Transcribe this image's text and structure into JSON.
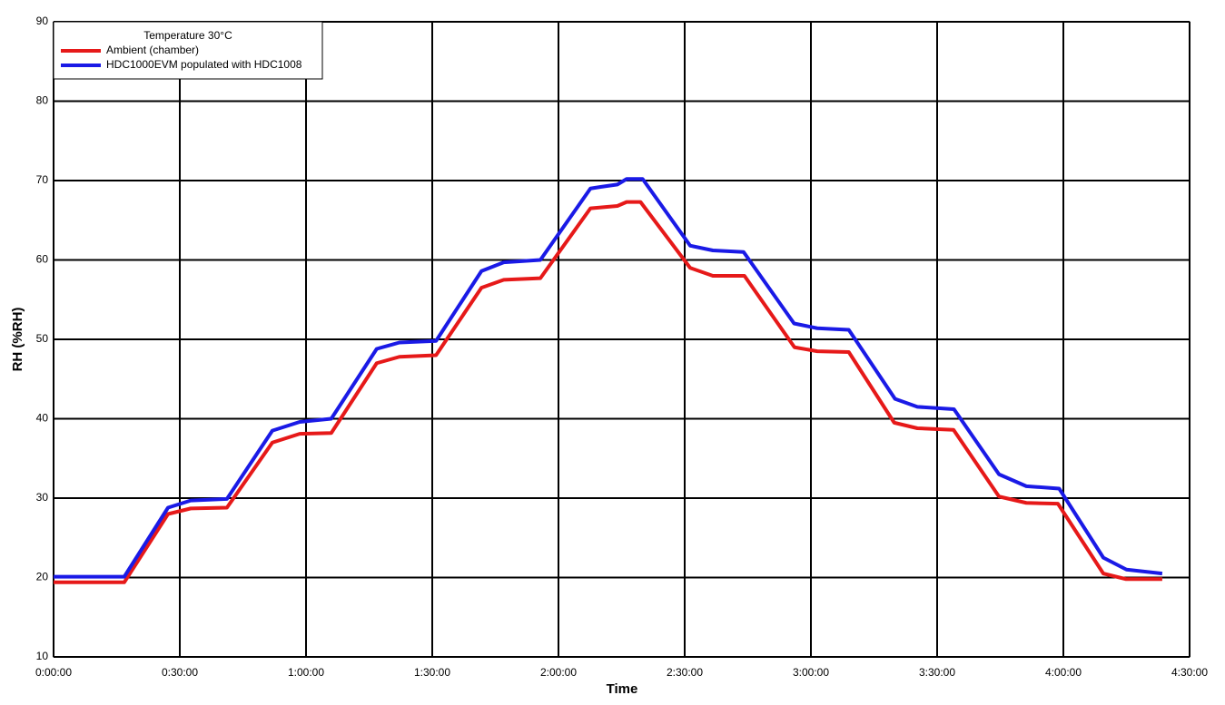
{
  "chart_data": {
    "type": "line",
    "xlabel": "Time",
    "ylabel": "RH (%RH)",
    "legend_title": "Temperature 30°C",
    "legend": "upper left",
    "grid": true,
    "xlim": [
      0,
      270
    ],
    "xticks": [
      {
        "value": 0,
        "label": "0:00:00"
      },
      {
        "value": 30,
        "label": "0:30:00"
      },
      {
        "value": 60,
        "label": "1:00:00"
      },
      {
        "value": 90,
        "label": "1:30:00"
      },
      {
        "value": 120,
        "label": "2:00:00"
      },
      {
        "value": 150,
        "label": "2:30:00"
      },
      {
        "value": 180,
        "label": "3:00:00"
      },
      {
        "value": 210,
        "label": "3:30:00"
      },
      {
        "value": 240,
        "label": "4:00:00"
      },
      {
        "value": 270,
        "label": "4:30:00"
      }
    ],
    "ylim": [
      10,
      90
    ],
    "yticks": [
      10,
      20,
      30,
      40,
      50,
      60,
      70,
      80,
      90
    ],
    "series": [
      {
        "name": "Ambient (chamber)",
        "color": "#e61919",
        "x": [
          0,
          16.8,
          27.2,
          32.6,
          41.2,
          52,
          58.5,
          66,
          76.8,
          82.2,
          90.9,
          101.7,
          107,
          115.7,
          127.6,
          134,
          136.2,
          139.5,
          151.3,
          156.7,
          164.2,
          176.1,
          181.5,
          189,
          199.8,
          205.3,
          213.9,
          224.7,
          231.2,
          238.7,
          249.5,
          254.9,
          263.5
        ],
        "values": [
          19.4,
          19.4,
          28,
          28.7,
          28.8,
          37,
          38.1,
          38.2,
          47,
          47.8,
          48,
          56.5,
          57.5,
          57.7,
          66.5,
          66.8,
          67.3,
          67.3,
          59,
          58,
          58,
          49,
          48.5,
          48.4,
          39.5,
          38.8,
          38.6,
          30.2,
          29.4,
          29.3,
          20.5,
          19.8,
          19.8
        ]
      },
      {
        "name": "HDC1000EVM populated with HDC1008",
        "color": "#1a1ae6",
        "x": [
          0,
          16.8,
          27.2,
          32.6,
          41.2,
          52,
          58.5,
          66,
          76.8,
          82.2,
          90.9,
          101.7,
          107,
          115.7,
          127.6,
          130,
          134,
          136.2,
          140,
          151.3,
          156.7,
          164,
          176,
          181.5,
          189,
          200,
          205.3,
          214,
          224.7,
          231.2,
          239,
          249.5,
          255,
          263.5
        ],
        "values": [
          20.1,
          20.1,
          28.8,
          29.7,
          29.9,
          38.5,
          39.6,
          40,
          48.8,
          49.6,
          49.8,
          58.6,
          59.7,
          60,
          69,
          69.2,
          69.5,
          70.2,
          70.2,
          61.8,
          61.2,
          61,
          52,
          51.4,
          51.2,
          42.5,
          41.5,
          41.2,
          33,
          31.5,
          31.2,
          22.5,
          21,
          20.5
        ]
      }
    ]
  }
}
